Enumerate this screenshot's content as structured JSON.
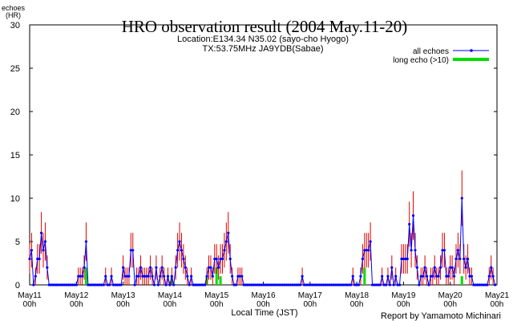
{
  "chart_data": {
    "type": "line",
    "title": "HRO observation result (2004 May.11-20)",
    "subtitle": [
      "Location:E134.34 N35.02 (sayo-cho Hyogo)",
      "TX:53.75MHz JA9YDB(Sabae)"
    ],
    "y_label": "echoes\n(HR)",
    "x_label": "Local Time (JST)",
    "credit": "Report by Yamamoto Michinari",
    "legend": "upper right",
    "ylim": [
      0,
      30
    ],
    "yticks": [
      0,
      5,
      10,
      15,
      20,
      25,
      30
    ],
    "xlim": [
      0,
      240
    ],
    "xticks": [
      {
        "value": 0,
        "label": "May11\n00h"
      },
      {
        "value": 24,
        "label": "May12\n00h"
      },
      {
        "value": 48,
        "label": "May13\n00h"
      },
      {
        "value": 72,
        "label": "May14\n00h"
      },
      {
        "value": 96,
        "label": "May15\n00h"
      },
      {
        "value": 120,
        "label": "May16\n00h"
      },
      {
        "value": 144,
        "label": "May17\n00h"
      },
      {
        "value": 168,
        "label": "May18\n00h"
      },
      {
        "value": 192,
        "label": "May19\n00h"
      },
      {
        "value": 216,
        "label": "May20\n00h"
      },
      {
        "value": 240,
        "label": "May21\n00h"
      }
    ],
    "x": [
      0,
      1,
      2,
      3,
      4,
      5,
      6,
      7,
      8,
      9,
      10,
      11,
      12,
      13,
      14,
      15,
      16,
      17,
      18,
      19,
      20,
      21,
      22,
      23,
      24,
      25,
      26,
      27,
      28,
      29,
      30,
      31,
      32,
      33,
      34,
      35,
      36,
      37,
      38,
      39,
      40,
      41,
      42,
      43,
      44,
      45,
      46,
      47,
      48,
      49,
      50,
      51,
      52,
      53,
      54,
      55,
      56,
      57,
      58,
      59,
      60,
      61,
      62,
      63,
      64,
      65,
      66,
      67,
      68,
      69,
      70,
      71,
      72,
      73,
      74,
      75,
      76,
      77,
      78,
      79,
      80,
      81,
      82,
      83,
      84,
      85,
      86,
      87,
      88,
      89,
      90,
      91,
      92,
      93,
      94,
      95,
      96,
      97,
      98,
      99,
      100,
      101,
      102,
      103,
      104,
      105,
      106,
      107,
      108,
      109,
      110,
      111,
      112,
      113,
      114,
      115,
      116,
      117,
      118,
      119,
      120,
      121,
      122,
      123,
      124,
      125,
      126,
      127,
      128,
      129,
      130,
      131,
      132,
      133,
      134,
      135,
      136,
      137,
      138,
      139,
      140,
      141,
      142,
      143,
      144,
      145,
      146,
      147,
      148,
      149,
      150,
      151,
      152,
      153,
      154,
      155,
      156,
      157,
      158,
      159,
      160,
      161,
      162,
      163,
      164,
      165,
      166,
      167,
      168,
      169,
      170,
      171,
      172,
      173,
      174,
      175,
      176,
      177,
      178,
      179,
      180,
      181,
      182,
      183,
      184,
      185,
      186,
      187,
      188,
      189,
      190,
      191,
      192,
      193,
      194,
      195,
      196,
      197,
      198,
      199,
      200,
      201,
      202,
      203,
      204,
      205,
      206,
      207,
      208,
      209,
      210,
      211,
      212,
      213,
      214,
      215,
      216,
      217,
      218,
      219,
      220,
      221,
      222,
      223,
      224,
      225,
      226,
      227,
      228,
      229,
      230,
      231,
      232,
      233,
      234,
      235,
      236,
      237,
      238,
      239
    ],
    "series": [
      {
        "name": "all echoes",
        "color": "#0000ff",
        "error_color": "#dd0000",
        "values": [
          3,
          4,
          0,
          1,
          3,
          3,
          6,
          4,
          5,
          2,
          0,
          0,
          0,
          0,
          0,
          0,
          0,
          0,
          0,
          0,
          0,
          0,
          0,
          0,
          0,
          1,
          1,
          1,
          2,
          5,
          0,
          0,
          0,
          0,
          0,
          0,
          0,
          0,
          0,
          1,
          0,
          0,
          1,
          0,
          0,
          0,
          0,
          0,
          2,
          1,
          1,
          1,
          4,
          4,
          0,
          1,
          1,
          2,
          1,
          1,
          1,
          1,
          2,
          1,
          0,
          2,
          0,
          1,
          2,
          1,
          0,
          1,
          0,
          1,
          0,
          2,
          4,
          5,
          4,
          3,
          2,
          1,
          0,
          1,
          0,
          0,
          0,
          0,
          0,
          0,
          0,
          1,
          2,
          2,
          1,
          3,
          3,
          2,
          3,
          3,
          4,
          5,
          6,
          3,
          1,
          0,
          0,
          1,
          1,
          1,
          0,
          0,
          0,
          0,
          0,
          0,
          0,
          0,
          0,
          0,
          0,
          0,
          0,
          0,
          0,
          0,
          0,
          0,
          0,
          0,
          0,
          0,
          0,
          0,
          0,
          0,
          0,
          0,
          0,
          0,
          1,
          0,
          0,
          0,
          0,
          0,
          0,
          0,
          0,
          0,
          0,
          0,
          0,
          0,
          0,
          0,
          0,
          0,
          0,
          0,
          0,
          0,
          0,
          0,
          0,
          0,
          1,
          0,
          0,
          0,
          1,
          3,
          4,
          4,
          4,
          5,
          0,
          0,
          0,
          0,
          0,
          1,
          0,
          0,
          1,
          0,
          2,
          0,
          1,
          0,
          0,
          3,
          3,
          3,
          3,
          7,
          4,
          8,
          4,
          2,
          0,
          1,
          1,
          2,
          1,
          0,
          1,
          1,
          2,
          1,
          1,
          2,
          4,
          4,
          1,
          1,
          2,
          2,
          1,
          3,
          4,
          3,
          10,
          3,
          2,
          3,
          1,
          1,
          0,
          0,
          0,
          0,
          0,
          0,
          0,
          0,
          1,
          2,
          1,
          0
        ],
        "errors": [
          1.7,
          2,
          0,
          1,
          1.7,
          1.7,
          2.4,
          2,
          2.2,
          1.4,
          0,
          0,
          0,
          0,
          0,
          0,
          0,
          0,
          0,
          0,
          0,
          0,
          0,
          0,
          0,
          1,
          1,
          1,
          1.4,
          2.2,
          0,
          0,
          0,
          0,
          0,
          0,
          0,
          0,
          0,
          1,
          0,
          0,
          1,
          0,
          0,
          0,
          0,
          0,
          1.4,
          1,
          1,
          1,
          2,
          2,
          0,
          1,
          1,
          1.4,
          1,
          1,
          1,
          1,
          1.4,
          1,
          0,
          1.4,
          0,
          1,
          1.4,
          1,
          0,
          1,
          0,
          1,
          0,
          1.4,
          2,
          2.2,
          2,
          1.7,
          1.4,
          1,
          0,
          1,
          0,
          0,
          0,
          0,
          0,
          0,
          0,
          1,
          1.4,
          1.4,
          1,
          1.7,
          1.7,
          1.4,
          1.7,
          1.7,
          2,
          2.2,
          2.4,
          1.7,
          1,
          0,
          0,
          1,
          1,
          1,
          0,
          0,
          0,
          0,
          0,
          0,
          0,
          0,
          0,
          0,
          0,
          0,
          0,
          0,
          0,
          0,
          0,
          0,
          0,
          0,
          0,
          0,
          0,
          0,
          0,
          0,
          0,
          0,
          0,
          0,
          1,
          0,
          0,
          0,
          0,
          0,
          0,
          0,
          0,
          0,
          0,
          0,
          0,
          0,
          0,
          0,
          0,
          0,
          0,
          0,
          0,
          0,
          0,
          0,
          0,
          0,
          1,
          0,
          0,
          0,
          1,
          1.7,
          2,
          2,
          2,
          2.2,
          0,
          0,
          0,
          0,
          0,
          1,
          0,
          0,
          1,
          0,
          1.4,
          0,
          1,
          0,
          0,
          1.7,
          1.7,
          1.7,
          1.7,
          2.6,
          2,
          2.8,
          2,
          1.4,
          0,
          1,
          1,
          1.4,
          1,
          0,
          1,
          1,
          1.4,
          1,
          1,
          1.4,
          2,
          2,
          1,
          1,
          1.4,
          1.4,
          1,
          1.7,
          2,
          1.7,
          3.2,
          1.7,
          1.4,
          1.7,
          1,
          1,
          0,
          0,
          0,
          0,
          0,
          0,
          0,
          0,
          1,
          1.4,
          1,
          0
        ]
      },
      {
        "name": "long echo (>10)",
        "color": "#00dd00",
        "values": [
          0,
          0,
          0,
          0,
          0,
          0,
          0,
          0,
          0,
          0,
          0,
          0,
          0,
          0,
          0,
          0,
          0,
          0,
          0,
          0,
          0,
          0,
          0,
          0,
          0,
          0,
          0,
          0,
          0,
          2,
          0,
          0,
          0,
          0,
          0,
          0,
          0,
          0,
          0,
          0,
          0,
          0,
          0,
          0,
          0,
          0,
          0,
          0,
          0,
          0,
          0,
          0,
          0,
          0,
          0,
          0,
          0,
          0,
          0,
          0,
          0,
          0,
          0,
          0,
          0,
          0,
          0,
          0,
          0,
          0,
          0,
          0,
          0,
          1,
          0,
          0,
          0,
          0,
          0,
          0,
          0,
          0,
          0,
          0,
          0,
          0,
          0,
          0,
          0,
          0,
          0,
          1,
          0,
          0,
          0,
          0,
          2,
          0,
          1,
          0,
          0,
          0,
          0,
          0,
          0,
          0,
          0,
          0,
          0,
          0,
          0,
          0,
          0,
          0,
          0,
          0,
          0,
          0,
          0,
          0,
          0,
          0,
          0,
          0,
          0,
          0,
          0,
          0,
          0,
          0,
          0,
          0,
          0,
          0,
          0,
          0,
          0,
          0,
          0,
          0,
          0,
          0,
          0,
          0,
          0,
          0,
          0,
          0,
          0,
          0,
          0,
          0,
          0,
          0,
          0,
          0,
          0,
          0,
          0,
          0,
          0,
          0,
          0,
          0,
          0,
          0,
          0,
          0,
          0,
          0,
          0,
          0,
          2,
          0,
          0,
          0,
          0,
          0,
          0,
          0,
          0,
          0,
          0,
          0,
          0,
          0,
          0,
          0,
          0,
          0,
          0,
          0,
          0,
          0,
          0,
          0,
          0,
          0,
          0,
          0,
          0,
          0,
          0,
          0,
          0,
          0,
          0,
          0,
          0,
          0,
          0,
          0,
          0,
          0,
          0,
          0,
          0,
          0,
          0,
          0,
          0,
          0,
          1,
          0,
          0,
          0,
          0,
          0,
          0,
          0,
          0,
          0,
          0,
          0,
          0,
          0,
          0,
          0,
          0,
          0
        ]
      }
    ]
  }
}
